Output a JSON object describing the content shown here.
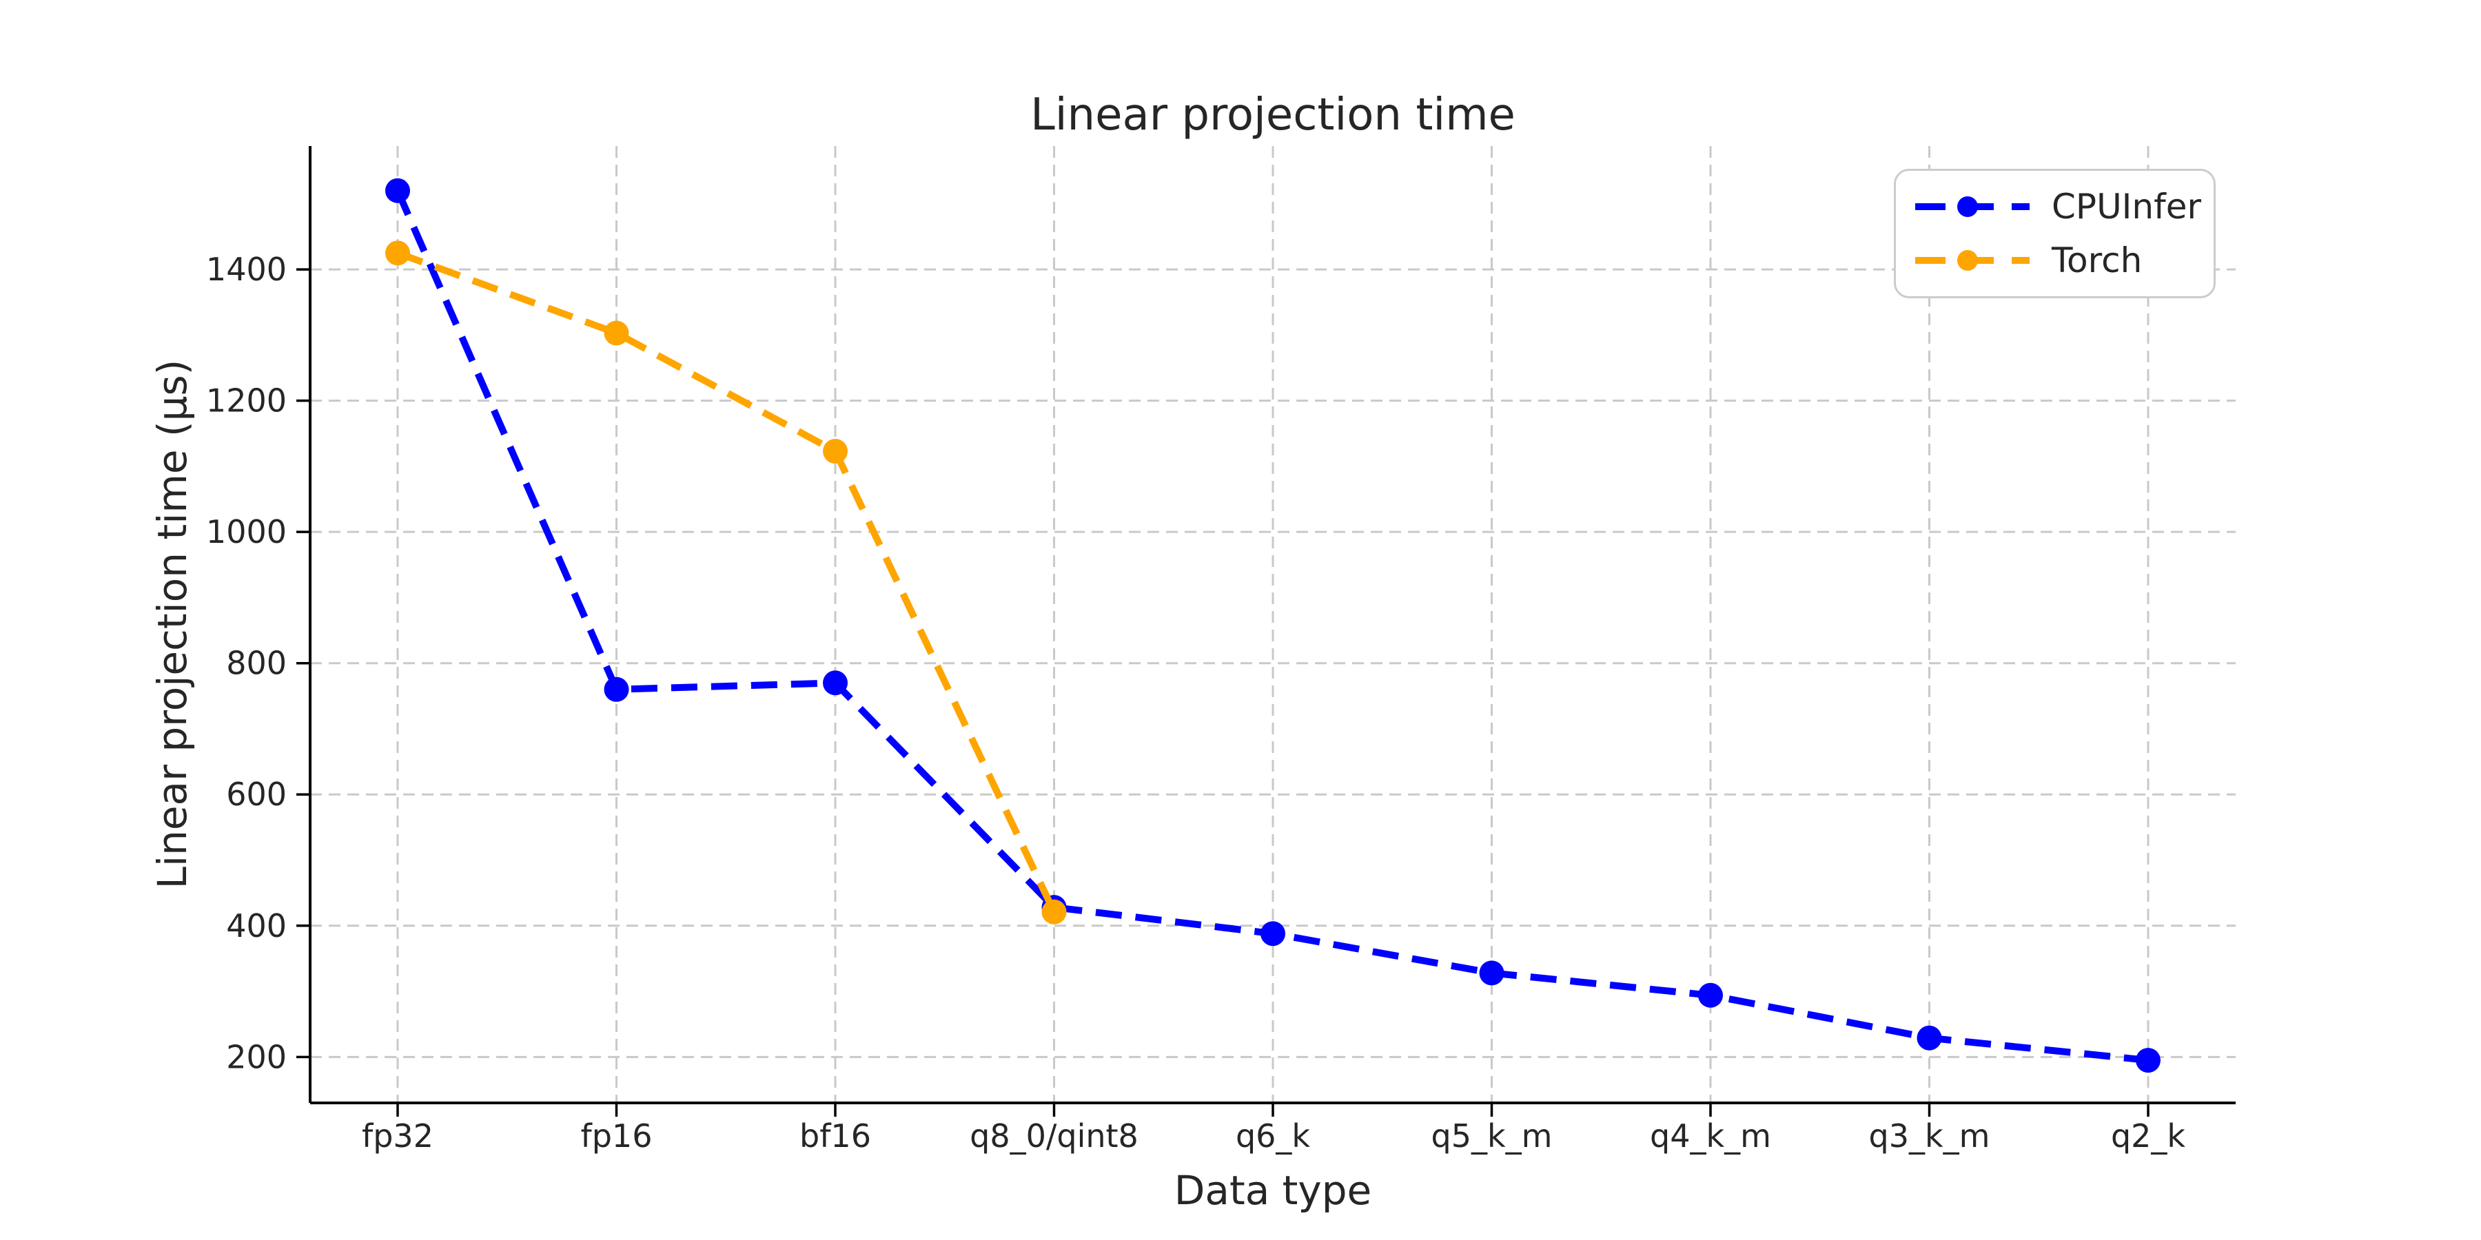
{
  "chart_data": {
    "type": "line",
    "title": "Linear projection time",
    "xlabel": "Data type",
    "ylabel": "Linear projection time (μs)",
    "categories": [
      "fp32",
      "fp16",
      "bf16",
      "q8_0/qint8",
      "q6_k",
      "q5_k_m",
      "q4_k_m",
      "q3_k_m",
      "q2_k"
    ],
    "series": [
      {
        "name": "CPUInfer",
        "color": "#0000ff",
        "values": [
          1520,
          760,
          770,
          428,
          388,
          328,
          294,
          229,
          195
        ]
      },
      {
        "name": "Torch",
        "color": "#ffa500",
        "values": [
          1425,
          1303,
          1123,
          421,
          null,
          null,
          null,
          null,
          null
        ]
      }
    ],
    "yticks": [
      200,
      400,
      600,
      800,
      1000,
      1200,
      1400
    ],
    "ylim": [
      130,
      1588
    ],
    "grid": true,
    "grid_style": "dashed",
    "line_style": "dashed",
    "marker": "circle",
    "legend_position": "upper right",
    "colors": {
      "background": "#ffffff",
      "gridline": "#c9c9c9",
      "axis": "#000000",
      "text": "#262626",
      "legend_border": "#cccccc"
    }
  }
}
